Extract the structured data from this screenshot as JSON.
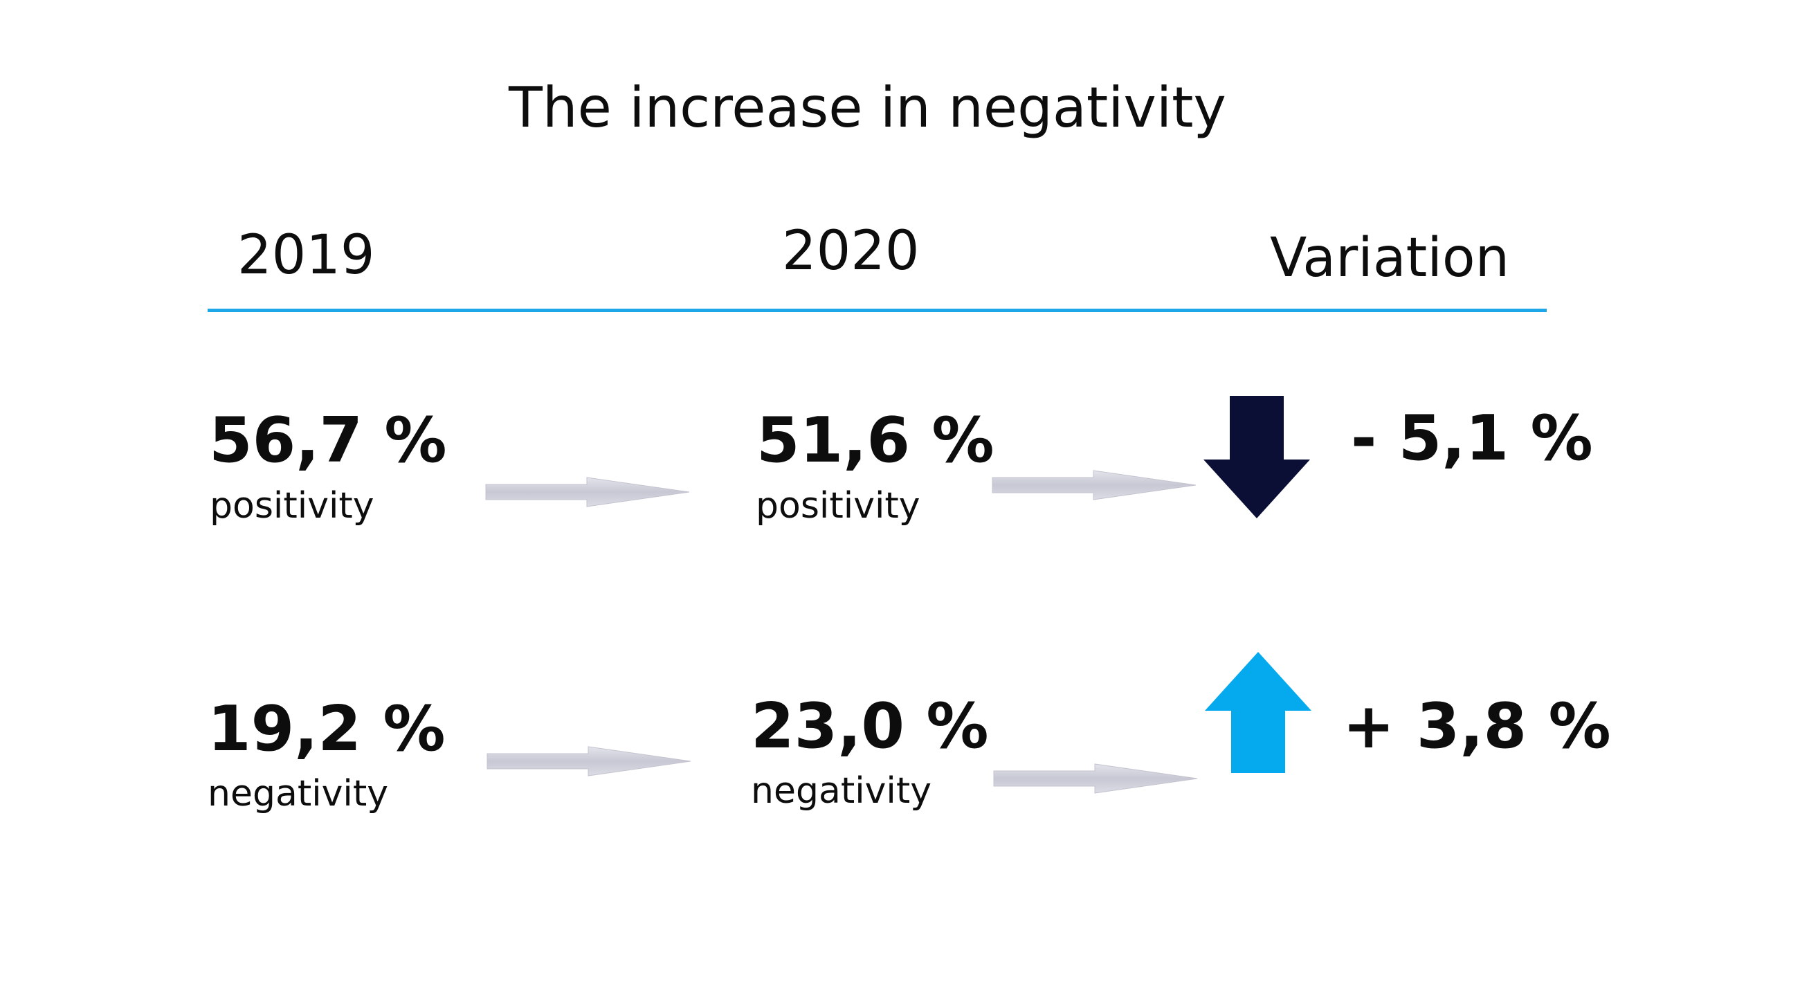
{
  "title": "The increase in negativity",
  "headers": {
    "y2019": "2019",
    "y2020": "2020",
    "variation": "Variation"
  },
  "rows": [
    {
      "value_2019": "56,7 %",
      "label_2019": "positivity",
      "value_2020": "51,6 %",
      "label_2020": "positivity",
      "variation": "- 5,1 %",
      "direction": "down"
    },
    {
      "value_2019": "19,2 %",
      "label_2019": "negativity",
      "value_2020": "23,0 %",
      "label_2020": "negativity",
      "variation": "+ 3,8 %",
      "direction": "up"
    }
  ],
  "colors": {
    "text": "#0d0d0d",
    "rule": "#1da6e8",
    "down_arrow": "#0b0f35",
    "up_arrow": "#05aaee",
    "transition_arrow": "#d3d3dd"
  },
  "icons": {
    "transition": "right-arrow-icon",
    "down": "down-arrow-icon",
    "up": "up-arrow-icon"
  }
}
